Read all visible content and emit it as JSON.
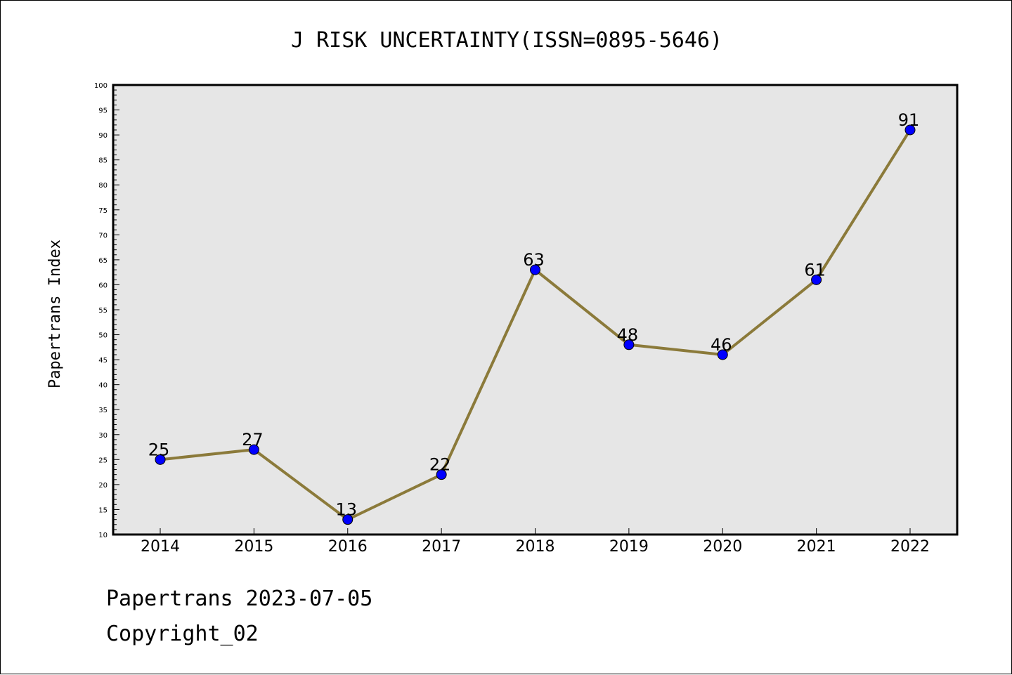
{
  "chart_data": {
    "type": "line",
    "title": "J RISK UNCERTAINTY(ISSN=0895-5646)",
    "xlabel": "",
    "ylabel": "Papertrans Index",
    "categories": [
      "2014",
      "2015",
      "2016",
      "2017",
      "2018",
      "2019",
      "2020",
      "2021",
      "2022"
    ],
    "values": [
      25,
      27,
      13,
      22,
      63,
      48,
      46,
      61,
      91
    ],
    "ylim": [
      10,
      100
    ],
    "yticks": [
      10,
      15,
      20,
      25,
      30,
      35,
      40,
      45,
      50,
      55,
      60,
      65,
      70,
      75,
      80,
      85,
      90,
      95,
      100
    ],
    "grid": false,
    "line_color": "#8b7a3a",
    "marker_color": "#0000ff",
    "plot_background": "#e6e6e6"
  },
  "footer": {
    "source": "Papertrans 2023-07-05",
    "copyright": "Copyright_02"
  }
}
